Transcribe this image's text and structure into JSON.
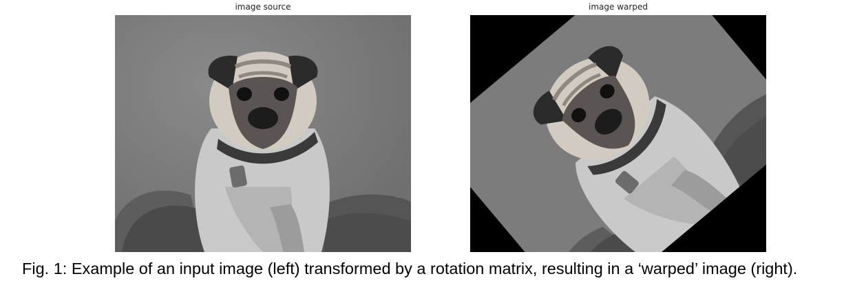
{
  "figure": {
    "left_panel": {
      "title": "image source",
      "image_description_icon": "pug-photo-grayscale"
    },
    "right_panel": {
      "title": "image warped",
      "image_description_icon": "pug-photo-rotated-grayscale",
      "rotation_degrees": -40
    },
    "caption": "Fig. 1: Example of an input image (left) transformed by a rotation matrix, resulting in a ‘warped’ image (right)."
  }
}
